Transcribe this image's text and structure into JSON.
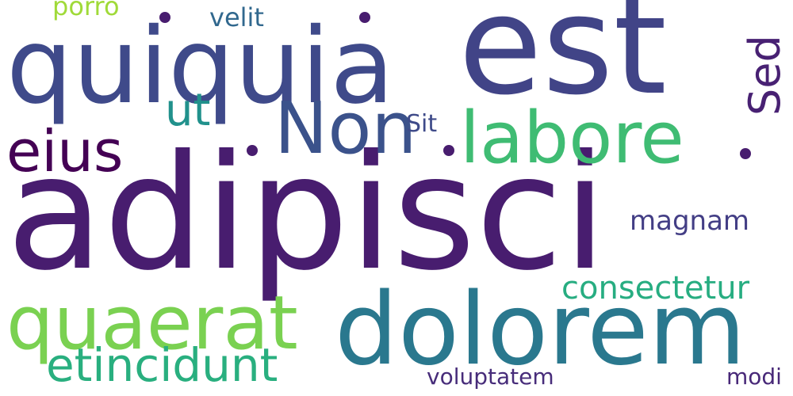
{
  "words": [
    {
      "text": "adipisci",
      "color": "#481d6f"
    },
    {
      "text": "est",
      "color": "#414487"
    },
    {
      "text": "quiquia",
      "color": "#3f4a8a"
    },
    {
      "text": "dolorem",
      "color": "#2a788e"
    },
    {
      "text": "quaerat",
      "color": "#7ad151"
    },
    {
      "text": "labore",
      "color": "#3fbc73"
    },
    {
      "text": "Non",
      "color": "#3b528b"
    },
    {
      "text": "eius",
      "color": "#440154"
    },
    {
      "text": "etincidunt",
      "color": "#29af7f"
    },
    {
      "text": "ut",
      "color": "#21918c"
    },
    {
      "text": "Sed",
      "color": "#482173"
    },
    {
      "text": "consectetur",
      "color": "#27ad81"
    },
    {
      "text": "magnam",
      "color": "#433e85"
    },
    {
      "text": "velit",
      "color": "#31688e"
    },
    {
      "text": "porro",
      "color": "#a0da39"
    },
    {
      "text": "Sit",
      "color": "#3e4a89"
    },
    {
      "text": "voluptatem",
      "color": "#472c7a"
    },
    {
      "text": "modi",
      "color": "#482878"
    }
  ],
  "dots": {
    "color": "#481d6f"
  }
}
